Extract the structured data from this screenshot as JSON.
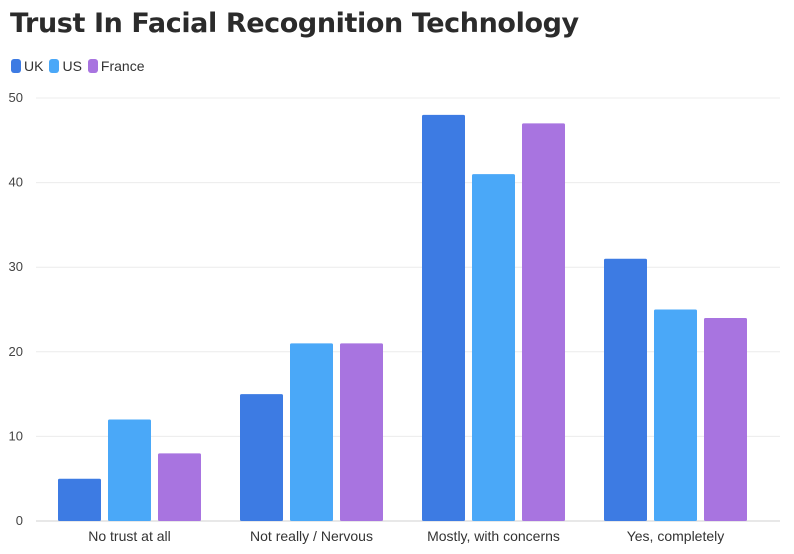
{
  "chart_data": {
    "type": "bar",
    "title": "Trust In Facial Recognition Technology",
    "xlabel": "",
    "ylabel": "",
    "categories": [
      "No trust at all",
      "Not really / Nervous",
      "Mostly, with concerns",
      "Yes, completely"
    ],
    "series": [
      {
        "name": "UK",
        "color": "#3d7be3",
        "values": [
          5,
          15,
          48,
          31
        ]
      },
      {
        "name": "US",
        "color": "#4aa8f8",
        "values": [
          12,
          21,
          41,
          25
        ]
      },
      {
        "name": "France",
        "color": "#a874e0",
        "values": [
          8,
          21,
          47,
          24
        ]
      }
    ],
    "ylim": [
      0,
      50
    ],
    "yticks": [
      0,
      10,
      20,
      30,
      40,
      50
    ],
    "ytick_labels": [
      "0",
      "10",
      "20",
      "30",
      "40",
      "50"
    ],
    "grid": true,
    "legend_position": "top-left"
  }
}
